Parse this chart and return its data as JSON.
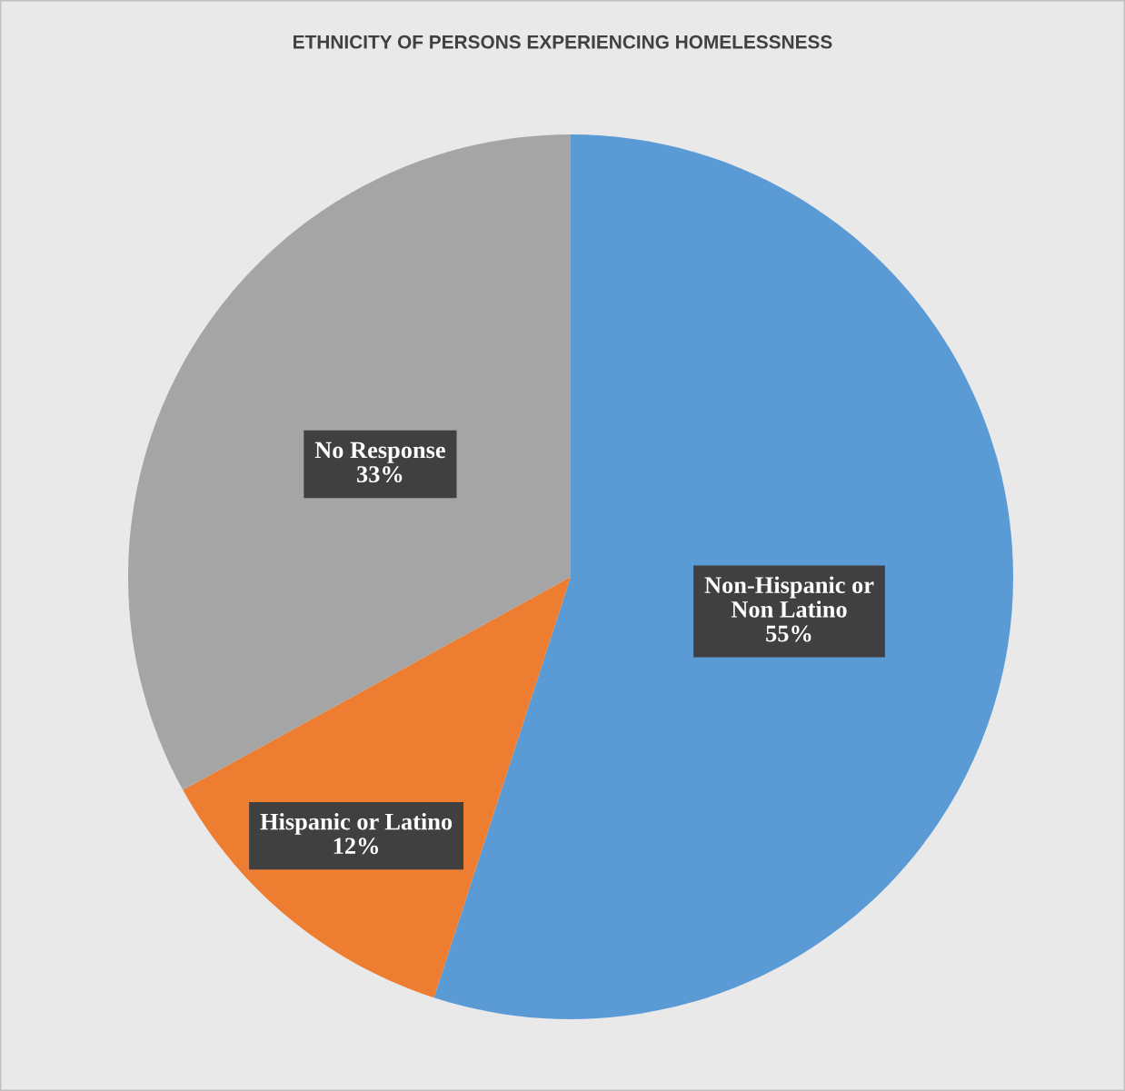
{
  "chart_data": {
    "type": "pie",
    "title": "ETHNICITY OF PERSONS EXPERIENCING HOMELESSNESS",
    "categories": [
      "Non-Hispanic or Non Latino",
      "Hispanic or Latino",
      "No Response"
    ],
    "values": [
      55,
      12,
      33
    ],
    "colors": [
      "#5b9bd5",
      "#ed7d31",
      "#a5a5a5"
    ],
    "value_labels": [
      "55%",
      "12%",
      "33%"
    ],
    "legend": false
  }
}
